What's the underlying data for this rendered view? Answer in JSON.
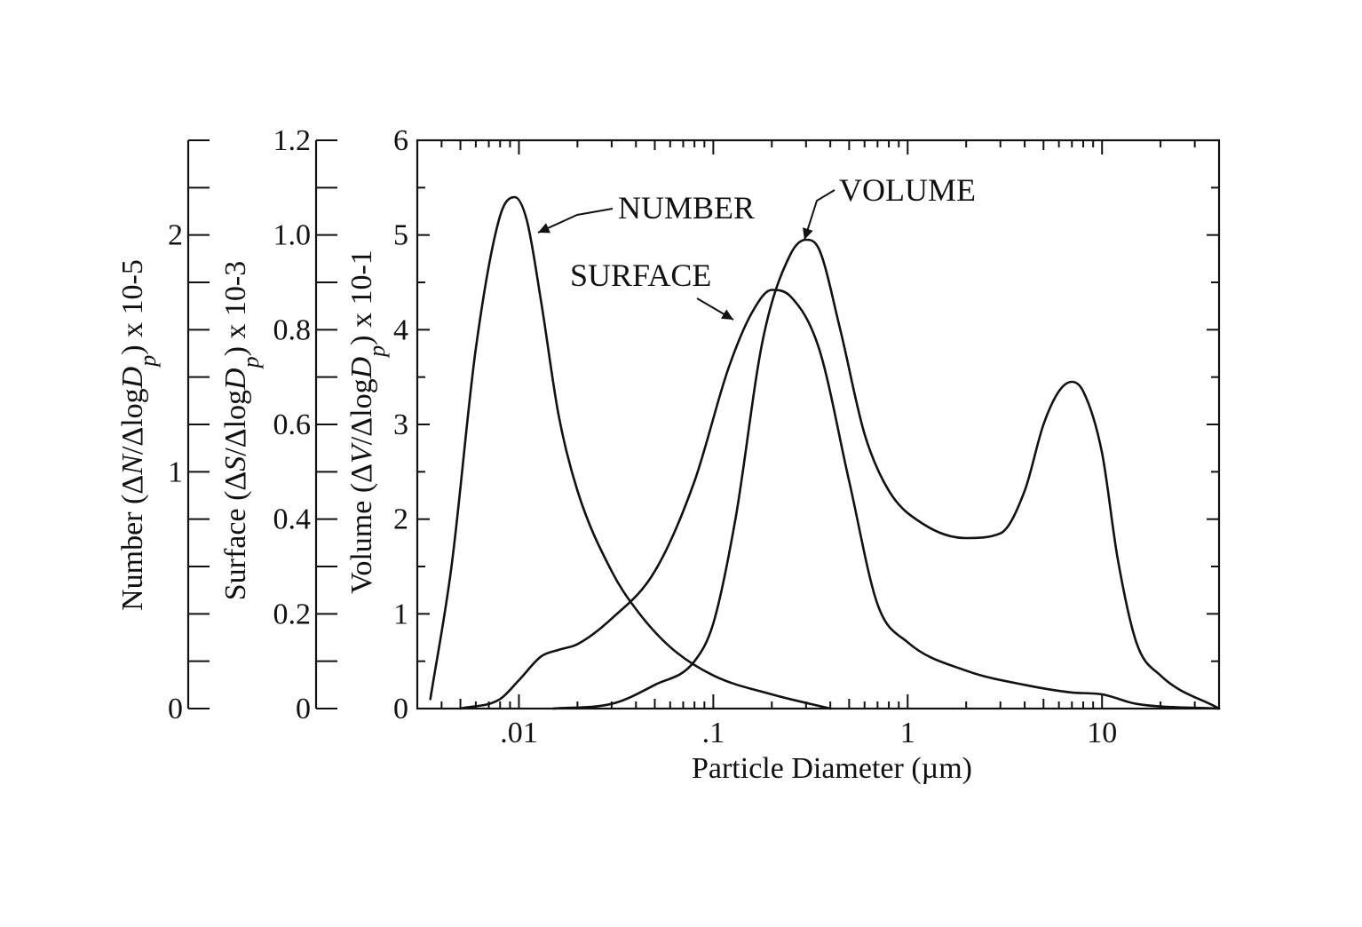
{
  "chart_data": {
    "type": "line",
    "xlabel": "Particle Diameter (µm)",
    "x_scale": "log",
    "xlim": [
      0.003,
      40
    ],
    "x_ticks": [
      0.01,
      0.1,
      1,
      10
    ],
    "x_tick_labels": [
      ".01",
      ".1",
      "1",
      "10"
    ],
    "y_axes": [
      {
        "id": "number",
        "label_parts": [
          "Number (Δ",
          "N",
          "/Δlog",
          "D",
          "p",
          ") x 10-5"
        ],
        "ylim": [
          0,
          2.4
        ],
        "ticks": [
          0,
          1,
          2
        ],
        "tick_labels": [
          "0",
          "1",
          "2"
        ]
      },
      {
        "id": "surface",
        "label_parts": [
          "Surface (Δ",
          "S",
          "/Δlog",
          "D",
          "p",
          ") x 10-3"
        ],
        "ylim": [
          0,
          1.2
        ],
        "ticks": [
          0,
          0.2,
          0.4,
          0.6,
          0.8,
          1.0,
          1.2
        ],
        "tick_labels": [
          "0",
          "0.2",
          "0.4",
          "0.6",
          "0.8",
          "1.0",
          "1.2"
        ]
      },
      {
        "id": "volume",
        "label_parts": [
          "Volume (Δ",
          "V",
          "/Δlog",
          "D",
          "p",
          ") x 10-1"
        ],
        "ylim": [
          0,
          6
        ],
        "ticks": [
          0,
          1,
          2,
          3,
          4,
          5,
          6
        ],
        "tick_labels": [
          "0",
          "1",
          "2",
          "3",
          "4",
          "5",
          "6"
        ]
      }
    ],
    "series": [
      {
        "name": "NUMBER",
        "x": [
          0.0035,
          0.0045,
          0.006,
          0.008,
          0.0095,
          0.011,
          0.013,
          0.016,
          0.02,
          0.03,
          0.04,
          0.06,
          0.1,
          0.2,
          0.4
        ],
        "y": [
          0.1,
          1.5,
          3.8,
          5.2,
          5.4,
          5.15,
          4.3,
          3.1,
          2.3,
          1.45,
          1.05,
          0.65,
          0.35,
          0.15,
          0.0
        ]
      },
      {
        "name": "SURFACE",
        "x": [
          0.005,
          0.008,
          0.01,
          0.013,
          0.016,
          0.02,
          0.03,
          0.05,
          0.08,
          0.12,
          0.16,
          0.2,
          0.25,
          0.35,
          0.5,
          0.7,
          1,
          2,
          4,
          7,
          10,
          15,
          40
        ],
        "y": [
          0.0,
          0.1,
          0.3,
          0.55,
          0.62,
          0.68,
          0.95,
          1.45,
          2.4,
          3.6,
          4.2,
          4.42,
          4.35,
          3.8,
          2.4,
          1.1,
          0.7,
          0.4,
          0.25,
          0.17,
          0.15,
          0.05,
          0.0
        ]
      },
      {
        "name": "VOLUME",
        "x": [
          0.015,
          0.03,
          0.05,
          0.08,
          0.1,
          0.13,
          0.18,
          0.25,
          0.3,
          0.35,
          0.45,
          0.6,
          0.8,
          1.2,
          2,
          3,
          4,
          5,
          6,
          7,
          8,
          10,
          12,
          15,
          20,
          40
        ],
        "y": [
          0.0,
          0.05,
          0.25,
          0.5,
          0.9,
          2.0,
          3.9,
          4.8,
          4.95,
          4.85,
          4.0,
          2.9,
          2.3,
          1.95,
          1.8,
          1.85,
          2.3,
          3.0,
          3.35,
          3.45,
          3.35,
          2.7,
          1.6,
          0.7,
          0.35,
          0.0
        ]
      }
    ],
    "annotations": [
      {
        "text": "NUMBER"
      },
      {
        "text": "SURFACE"
      },
      {
        "text": "VOLUME"
      }
    ],
    "grid": false,
    "legend": "none"
  }
}
